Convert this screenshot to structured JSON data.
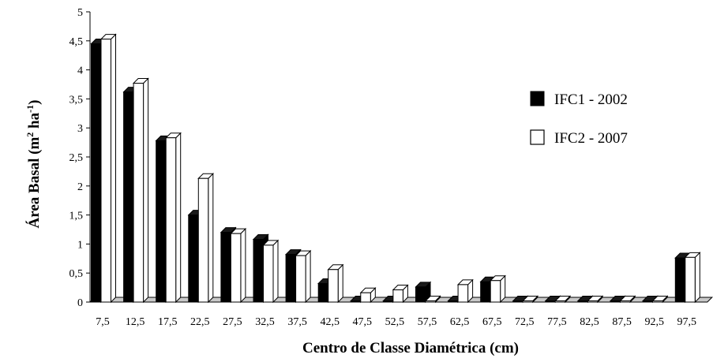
{
  "chart_data": {
    "type": "bar",
    "title": "",
    "xlabel": "Centro de Classe Diamétrica (cm)",
    "ylabel_main": "Área Basal (m",
    "ylabel_sup1": "2",
    "ylabel_mid": " ha",
    "ylabel_sup2": "-1",
    "ylabel_end": ")",
    "ylim": [
      0,
      5
    ],
    "yticks": [
      "0",
      "0,5",
      "1",
      "1,5",
      "2",
      "2,5",
      "3",
      "3,5",
      "4",
      "4,5",
      "5"
    ],
    "categories": [
      "7,5",
      "12,5",
      "17,5",
      "22,5",
      "27,5",
      "32,5",
      "37,5",
      "42,5",
      "47,5",
      "52,5",
      "57,5",
      "62,5",
      "67,5",
      "72,5",
      "77,5",
      "82,5",
      "87,5",
      "92,5",
      "97,5"
    ],
    "series": [
      {
        "name": "IFC1 - 2002",
        "color": "#000000",
        "values": [
          4.45,
          3.62,
          2.78,
          1.5,
          1.2,
          1.08,
          0.82,
          0.32,
          0.0,
          0.0,
          0.26,
          0.0,
          0.35,
          0.0,
          0.0,
          0.0,
          0.0,
          0.0,
          0.76
        ]
      },
      {
        "name": "IFC2 - 2007",
        "color": "#ffffff",
        "values": [
          4.53,
          3.77,
          2.83,
          2.13,
          1.18,
          0.98,
          0.8,
          0.56,
          0.16,
          0.21,
          0.0,
          0.3,
          0.37,
          0.0,
          0.0,
          0.0,
          0.0,
          0.0,
          0.77
        ]
      }
    ],
    "legend_position": "right",
    "grid": false
  }
}
